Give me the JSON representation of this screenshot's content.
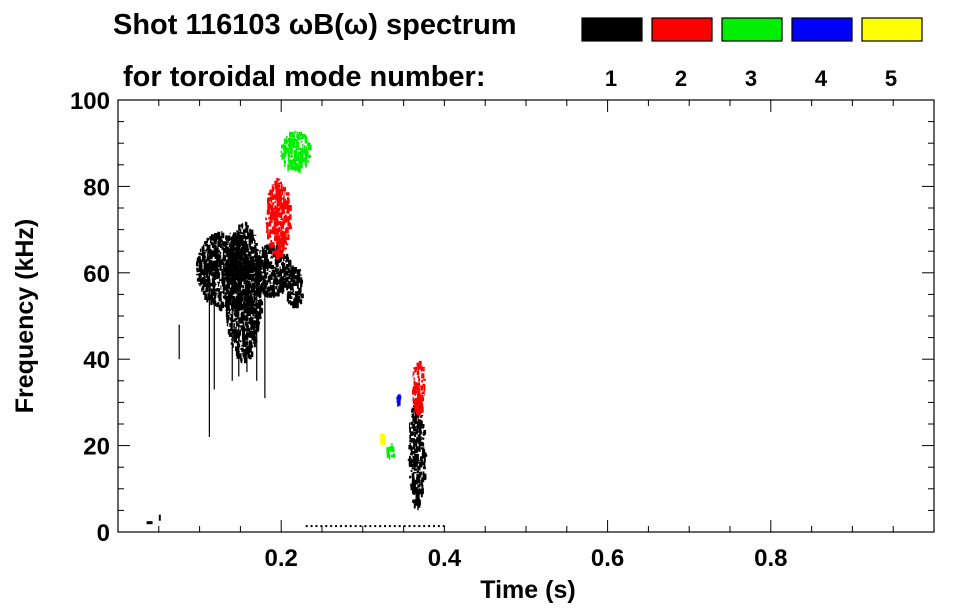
{
  "chart_data": {
    "type": "spectrogram",
    "title_line1": "Shot 116103 ωB(ω) spectrum",
    "title_line2": "for toroidal mode number:",
    "xlabel": "Time (s)",
    "ylabel": "Frequency (kHz)",
    "xlim": [
      0.0,
      1.0
    ],
    "ylim": [
      0,
      100
    ],
    "x_ticks": [
      {
        "value": 0.2,
        "label": "0.2"
      },
      {
        "value": 0.4,
        "label": "0.4"
      },
      {
        "value": 0.6,
        "label": "0.6"
      },
      {
        "value": 0.8,
        "label": "0.8"
      }
    ],
    "y_ticks": [
      {
        "value": 0,
        "label": "0"
      },
      {
        "value": 20,
        "label": "20"
      },
      {
        "value": 40,
        "label": "40"
      },
      {
        "value": 60,
        "label": "60"
      },
      {
        "value": 80,
        "label": "80"
      },
      {
        "value": 100,
        "label": "100"
      }
    ],
    "legend": [
      {
        "mode": "1",
        "color": "#000000"
      },
      {
        "mode": "2",
        "color": "#ff0000"
      },
      {
        "mode": "3",
        "color": "#00ee00"
      },
      {
        "mode": "4",
        "color": "#0000ff"
      },
      {
        "mode": "5",
        "color": "#ffff00"
      }
    ],
    "regions": [
      {
        "mode": "1",
        "t": [
          0.095,
          0.165
        ],
        "f": [
          52,
          70
        ]
      },
      {
        "mode": "1",
        "t": [
          0.13,
          0.175
        ],
        "f": [
          40,
          72
        ]
      },
      {
        "mode": "1",
        "t": [
          0.165,
          0.21
        ],
        "f": [
          55,
          67
        ]
      },
      {
        "mode": "1",
        "t": [
          0.205,
          0.225
        ],
        "f": [
          52,
          62
        ]
      },
      {
        "mode": "1",
        "t": [
          0.355,
          0.375
        ],
        "f": [
          6,
          31
        ]
      },
      {
        "mode": "2",
        "t": [
          0.18,
          0.21
        ],
        "f": [
          64,
          82
        ]
      },
      {
        "mode": "2",
        "t": [
          0.36,
          0.375
        ],
        "f": [
          28,
          40
        ]
      },
      {
        "mode": "3",
        "t": [
          0.198,
          0.235
        ],
        "f": [
          84,
          93
        ]
      },
      {
        "mode": "3",
        "t": [
          0.328,
          0.337
        ],
        "f": [
          17,
          21
        ]
      },
      {
        "mode": "4",
        "t": [
          0.341,
          0.344
        ],
        "f": [
          30,
          32
        ]
      },
      {
        "mode": "5",
        "t": [
          0.32,
          0.325
        ],
        "f": [
          21,
          23
        ]
      }
    ]
  },
  "colors": {
    "background": "#ffffff",
    "axis": "#000000"
  }
}
